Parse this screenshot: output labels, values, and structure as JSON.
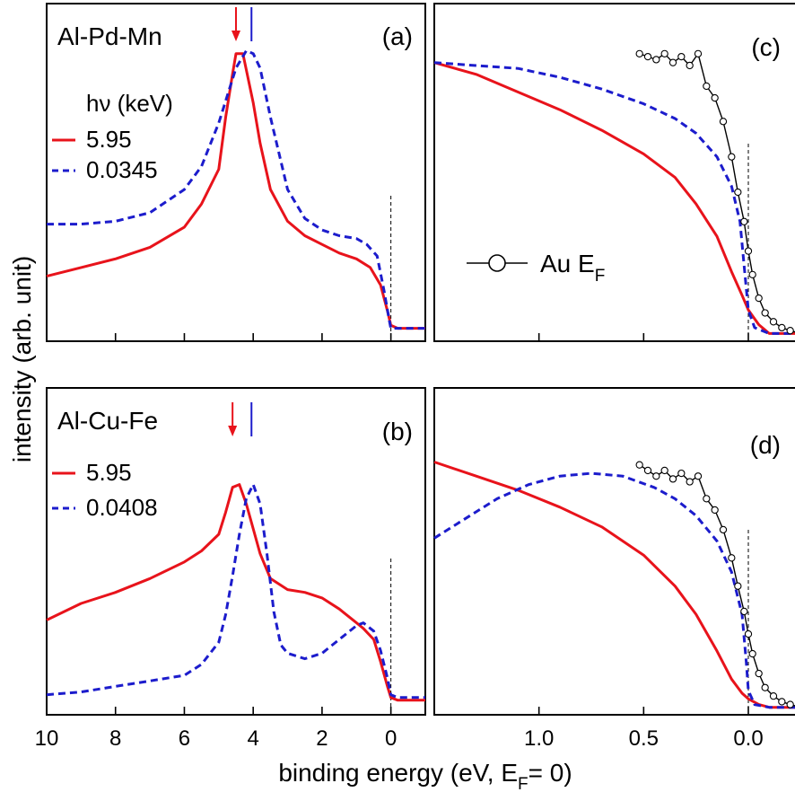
{
  "figure": {
    "ylabel": "intensity (arb. unit)",
    "xlabel": "binding energy (eV, E",
    "xlabel_sub": "F",
    "xlabel_tail": "= 0)"
  },
  "colors": {
    "red": "#e8131b",
    "blue": "#1c1ccc",
    "black": "#000000"
  },
  "chart_data": [
    {
      "id": "a",
      "type": "line",
      "panel_label": "(a)",
      "sample": "Al-Pd-Mn",
      "legend_title": "hν (keV)",
      "xlim": [
        10,
        -1
      ],
      "ylim": [
        0,
        1
      ],
      "x_ticks": [
        10,
        8,
        6,
        4,
        2,
        0
      ],
      "ef_marker": 0,
      "arrow_red": 4.5,
      "marker_blue": 4.05,
      "series": [
        {
          "name": "5.95",
          "color": "red",
          "dash": false,
          "x": [
            10,
            9,
            8,
            7,
            6,
            5.5,
            5,
            4.8,
            4.6,
            4.5,
            4.3,
            4,
            3.8,
            3.5,
            3,
            2.5,
            2,
            1.5,
            1,
            0.6,
            0.3,
            0.1,
            0,
            -0.2,
            -1
          ],
          "y": [
            0.2,
            0.23,
            0.26,
            0.3,
            0.37,
            0.45,
            0.57,
            0.75,
            0.9,
            0.97,
            0.97,
            0.8,
            0.66,
            0.5,
            0.39,
            0.34,
            0.31,
            0.28,
            0.26,
            0.23,
            0.17,
            0.08,
            0.03,
            0.02,
            0.02
          ]
        },
        {
          "name": "0.0345",
          "color": "blue",
          "dash": true,
          "x": [
            10,
            9,
            8,
            7,
            6,
            5.5,
            5,
            4.5,
            4.2,
            4,
            3.8,
            3.5,
            3,
            2.5,
            2,
            1.5,
            1,
            0.7,
            0.4,
            0.2,
            0.05,
            0,
            -0.2,
            -1
          ],
          "y": [
            0.38,
            0.38,
            0.39,
            0.42,
            0.5,
            0.58,
            0.73,
            0.92,
            0.98,
            0.97,
            0.92,
            0.75,
            0.5,
            0.4,
            0.36,
            0.34,
            0.33,
            0.31,
            0.27,
            0.15,
            0.05,
            0.02,
            0.02,
            0.02
          ]
        }
      ]
    },
    {
      "id": "b",
      "type": "line",
      "panel_label": "(b)",
      "sample": "Al-Cu-Fe",
      "xlim": [
        10,
        -1
      ],
      "ylim": [
        0,
        1
      ],
      "x_ticks": [
        10,
        8,
        6,
        4,
        2,
        0
      ],
      "x_ticklabels": [
        "10",
        "8",
        "6",
        "4",
        "2",
        "0"
      ],
      "ef_marker": 0,
      "arrow_red": 4.6,
      "marker_blue": 4.05,
      "series": [
        {
          "name": "5.95",
          "color": "red",
          "dash": false,
          "x": [
            10,
            9,
            8,
            7,
            6,
            5.5,
            5,
            4.8,
            4.6,
            4.4,
            4.2,
            4,
            3.8,
            3.5,
            3,
            2.5,
            2,
            1.5,
            1,
            0.8,
            0.5,
            0.3,
            0.1,
            0,
            -0.2,
            -1
          ],
          "y": [
            0.31,
            0.37,
            0.41,
            0.46,
            0.52,
            0.56,
            0.62,
            0.7,
            0.79,
            0.8,
            0.73,
            0.64,
            0.55,
            0.46,
            0.42,
            0.41,
            0.39,
            0.35,
            0.3,
            0.28,
            0.24,
            0.16,
            0.07,
            0.03,
            0.02,
            0.02
          ]
        },
        {
          "name": "0.0408",
          "color": "blue",
          "dash": true,
          "x": [
            10,
            9,
            8,
            7,
            6,
            5.5,
            5,
            4.8,
            4.6,
            4.4,
            4.2,
            4,
            3.8,
            3.6,
            3.4,
            3.2,
            3,
            2.5,
            2,
            1.5,
            1,
            0.8,
            0.5,
            0.3,
            0.1,
            0,
            -0.2,
            -1
          ],
          "y": [
            0.04,
            0.05,
            0.07,
            0.09,
            0.11,
            0.15,
            0.23,
            0.33,
            0.47,
            0.62,
            0.75,
            0.8,
            0.73,
            0.55,
            0.34,
            0.22,
            0.19,
            0.17,
            0.19,
            0.24,
            0.29,
            0.3,
            0.27,
            0.2,
            0.1,
            0.04,
            0.03,
            0.03
          ]
        }
      ]
    },
    {
      "id": "c",
      "type": "line",
      "panel_label": "(c)",
      "xlim": [
        1.5,
        -0.3
      ],
      "ylim": [
        0,
        1
      ],
      "x_ticks": [
        1.0,
        0.5,
        0.0
      ],
      "ef_marker": 0,
      "au_legend": "Au E",
      "au_legend_sub": "F",
      "series": [
        {
          "name": "5.95",
          "color": "red",
          "dash": false,
          "x": [
            1.5,
            1.3,
            1.1,
            0.9,
            0.7,
            0.5,
            0.35,
            0.25,
            0.15,
            0.08,
            0.03,
            0,
            -0.05,
            -0.1,
            -0.3
          ],
          "y": [
            0.94,
            0.9,
            0.84,
            0.78,
            0.71,
            0.63,
            0.55,
            0.46,
            0.35,
            0.23,
            0.15,
            0.1,
            0.05,
            0.02,
            0.02
          ]
        },
        {
          "name": "0.0345",
          "color": "blue",
          "dash": true,
          "x": [
            1.5,
            1.3,
            1.1,
            0.9,
            0.7,
            0.5,
            0.35,
            0.25,
            0.15,
            0.08,
            0.04,
            0.02,
            0,
            -0.03,
            -0.1,
            -0.3
          ],
          "y": [
            0.94,
            0.93,
            0.92,
            0.89,
            0.85,
            0.8,
            0.75,
            0.7,
            0.62,
            0.52,
            0.4,
            0.25,
            0.1,
            0.04,
            0.02,
            0.02
          ]
        },
        {
          "name": "Au E_F",
          "color": "black",
          "dash": false,
          "markers": true,
          "x": [
            0.52,
            0.48,
            0.44,
            0.4,
            0.36,
            0.32,
            0.28,
            0.24,
            0.2,
            0.16,
            0.12,
            0.08,
            0.05,
            0.02,
            0,
            -0.02,
            -0.05,
            -0.08,
            -0.12,
            -0.16,
            -0.2,
            -0.25,
            -0.3
          ],
          "y": [
            0.97,
            0.96,
            0.95,
            0.97,
            0.94,
            0.96,
            0.93,
            0.97,
            0.86,
            0.82,
            0.74,
            0.62,
            0.5,
            0.4,
            0.3,
            0.22,
            0.14,
            0.09,
            0.06,
            0.04,
            0.03,
            0.02,
            0.02
          ]
        }
      ]
    },
    {
      "id": "d",
      "type": "line",
      "panel_label": "(d)",
      "xlim": [
        1.5,
        -0.3
      ],
      "ylim": [
        0,
        1
      ],
      "x_ticks": [
        1.0,
        0.5,
        0.0
      ],
      "x_ticklabels": [
        "1.0",
        "0.5",
        "0.0"
      ],
      "ef_marker": 0,
      "series": [
        {
          "name": "5.95",
          "color": "red",
          "dash": false,
          "x": [
            1.5,
            1.3,
            1.1,
            0.9,
            0.7,
            0.5,
            0.35,
            0.25,
            0.15,
            0.08,
            0.03,
            0,
            -0.05,
            -0.1,
            -0.3
          ],
          "y": [
            0.89,
            0.84,
            0.79,
            0.73,
            0.66,
            0.56,
            0.45,
            0.35,
            0.22,
            0.12,
            0.07,
            0.05,
            0.03,
            0.02,
            0.02
          ]
        },
        {
          "name": "0.0408",
          "color": "blue",
          "dash": true,
          "x": [
            1.5,
            1.35,
            1.2,
            1.05,
            0.9,
            0.75,
            0.6,
            0.45,
            0.35,
            0.25,
            0.15,
            0.08,
            0.03,
            0.01,
            0,
            -0.03,
            -0.1,
            -0.3
          ],
          "y": [
            0.62,
            0.69,
            0.76,
            0.81,
            0.84,
            0.85,
            0.84,
            0.8,
            0.76,
            0.7,
            0.61,
            0.5,
            0.35,
            0.18,
            0.08,
            0.03,
            0.02,
            0.02
          ]
        },
        {
          "name": "Au E_F",
          "color": "black",
          "dash": false,
          "markers": true,
          "x": [
            0.52,
            0.48,
            0.44,
            0.4,
            0.36,
            0.32,
            0.28,
            0.24,
            0.2,
            0.16,
            0.12,
            0.08,
            0.05,
            0.02,
            0,
            -0.02,
            -0.05,
            -0.08,
            -0.12,
            -0.16,
            -0.2,
            -0.25,
            -0.3
          ],
          "y": [
            0.88,
            0.86,
            0.84,
            0.86,
            0.83,
            0.85,
            0.82,
            0.84,
            0.76,
            0.72,
            0.65,
            0.55,
            0.45,
            0.36,
            0.28,
            0.21,
            0.14,
            0.09,
            0.06,
            0.04,
            0.03,
            0.02,
            0.02
          ]
        }
      ]
    }
  ]
}
